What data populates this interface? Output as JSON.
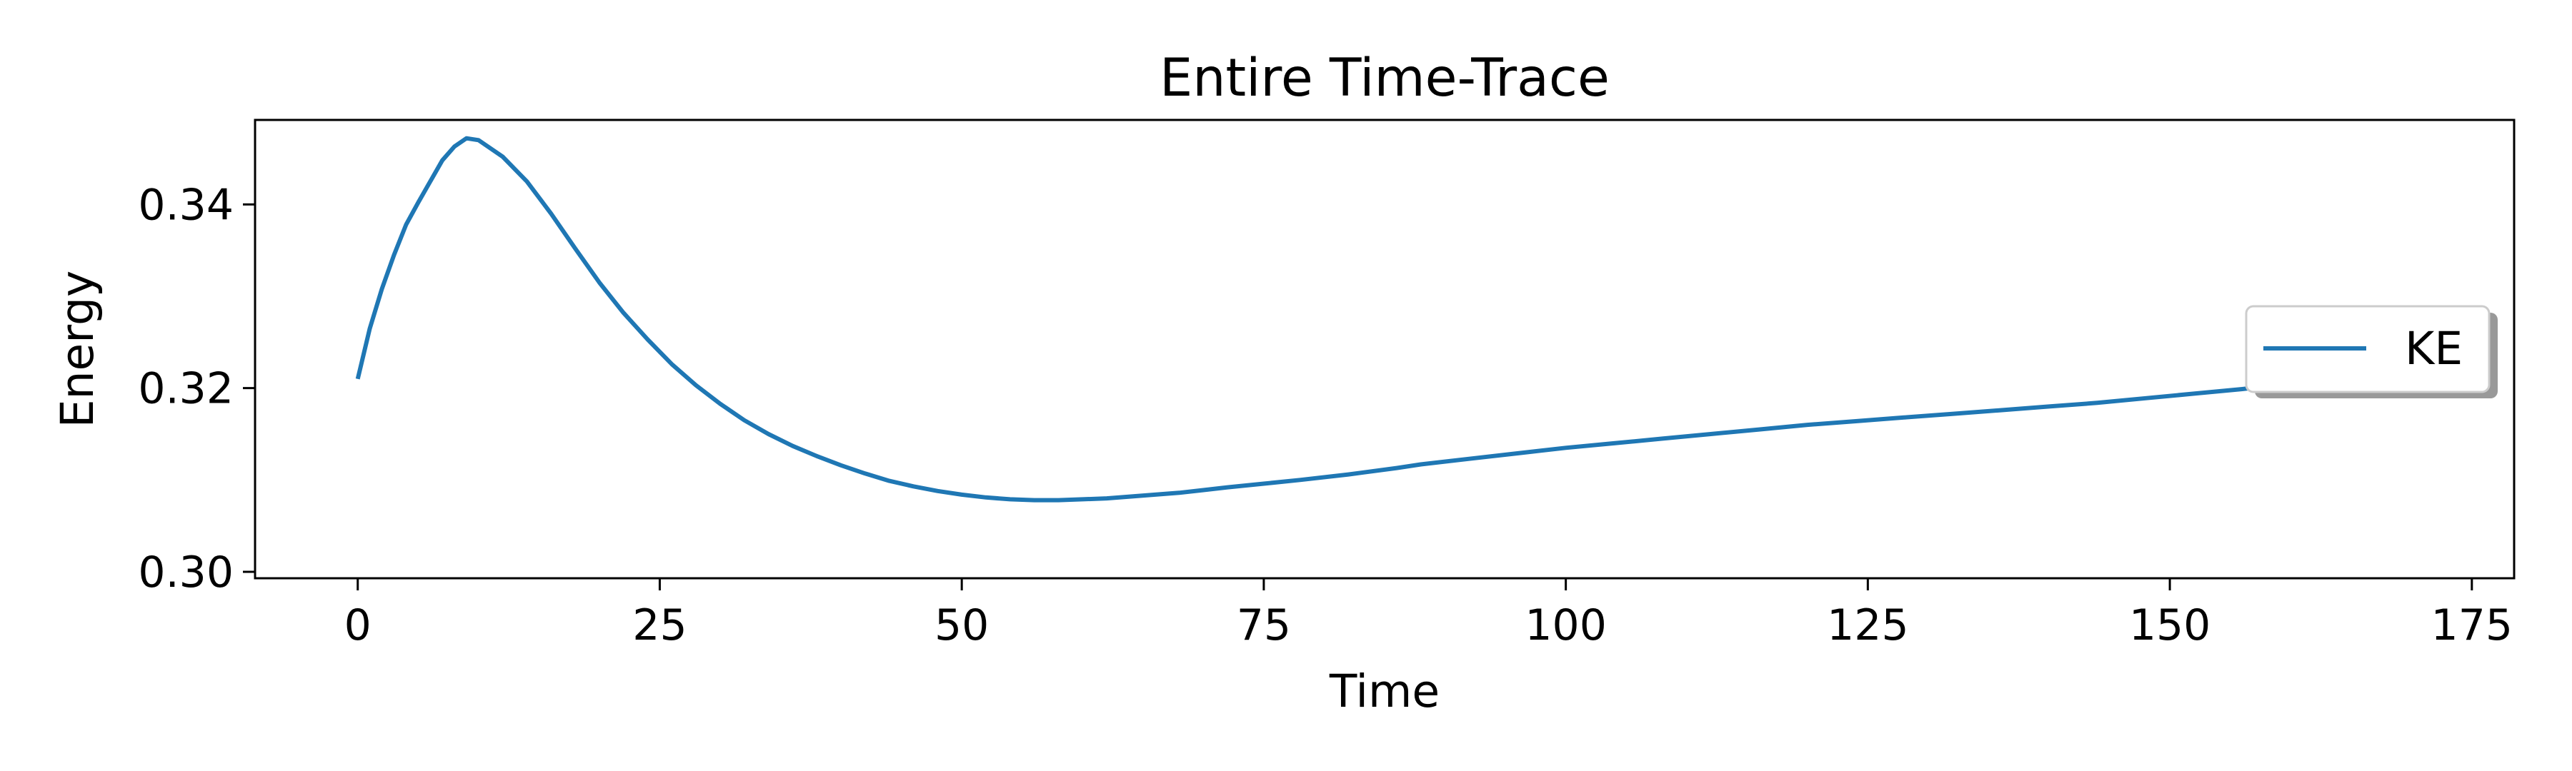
{
  "chart_data": {
    "type": "line",
    "title": "Entire Time-Trace",
    "xlabel": "Time",
    "ylabel": "Energy",
    "xlim": [
      -8.5,
      178.5
    ],
    "ylim": [
      0.2993,
      0.3492
    ],
    "xticks": [
      0,
      25,
      50,
      75,
      100,
      125,
      150,
      175
    ],
    "yticks": [
      0.3,
      0.32,
      0.34
    ],
    "xtick_labels": [
      "0",
      "25",
      "50",
      "75",
      "100",
      "125",
      "150",
      "175"
    ],
    "ytick_labels": [
      "0.30",
      "0.32",
      "0.34"
    ],
    "grid": false,
    "legend_position": "center-right",
    "series": [
      {
        "name": "KE",
        "color": "#1f77b4",
        "x": [
          0,
          1,
          2,
          3,
          4,
          5,
          6,
          7,
          8,
          9,
          10,
          12,
          14,
          16,
          18,
          20,
          22,
          24,
          26,
          28,
          30,
          32,
          34,
          36,
          38,
          40,
          42,
          44,
          46,
          48,
          50,
          52,
          54,
          56,
          58,
          60,
          62,
          64,
          66,
          68,
          70,
          72,
          75,
          78,
          82,
          86,
          88,
          92,
          96,
          100,
          104,
          108,
          112,
          116,
          120,
          124,
          128,
          132,
          136,
          140,
          144,
          148,
          152,
          156,
          160,
          164,
          168,
          170
        ],
        "y": [
          0.321,
          0.3265,
          0.3308,
          0.3345,
          0.3378,
          0.3402,
          0.3425,
          0.3448,
          0.3463,
          0.3472,
          0.347,
          0.3452,
          0.3425,
          0.339,
          0.3352,
          0.3315,
          0.3282,
          0.3253,
          0.3226,
          0.3203,
          0.3183,
          0.3165,
          0.315,
          0.3137,
          0.3126,
          0.3116,
          0.3107,
          0.3099,
          0.3093,
          0.3088,
          0.3084,
          0.3081,
          0.3079,
          0.3078,
          0.3078,
          0.3079,
          0.308,
          0.3082,
          0.3084,
          0.3086,
          0.3089,
          0.3092,
          0.3096,
          0.31,
          0.3106,
          0.3113,
          0.3117,
          0.3123,
          0.3129,
          0.3135,
          0.314,
          0.3145,
          0.315,
          0.3155,
          0.316,
          0.3164,
          0.3168,
          0.3172,
          0.3176,
          0.318,
          0.3184,
          0.3189,
          0.3194,
          0.3199,
          0.3205,
          0.3212,
          0.3218,
          0.322
        ]
      }
    ]
  }
}
